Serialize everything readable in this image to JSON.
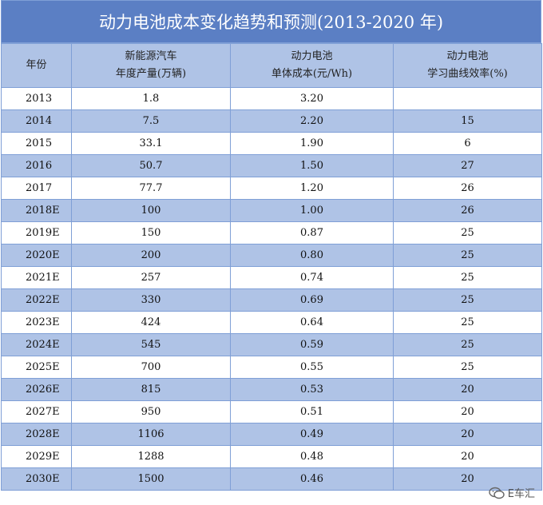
{
  "title": "动力电池成本变化趋势和预测(2013-2020 年)",
  "headers": {
    "year": "年份",
    "sales_line1": "新能源汽车",
    "sales_line2": "年度产量(万辆)",
    "cost_line1": "动力电池",
    "cost_line2": "单体成本(元/Wh)",
    "rate_line1": "动力电池",
    "rate_line2": "学习曲线效率(%)"
  },
  "rows": [
    {
      "year": "2013",
      "sales": "1.8",
      "cost": "3.20",
      "rate": ""
    },
    {
      "year": "2014",
      "sales": "7.5",
      "cost": "2.20",
      "rate": "15"
    },
    {
      "year": "2015",
      "sales": "33.1",
      "cost": "1.90",
      "rate": "6"
    },
    {
      "year": "2016",
      "sales": "50.7",
      "cost": "1.50",
      "rate": "27"
    },
    {
      "year": "2017",
      "sales": "77.7",
      "cost": "1.20",
      "rate": "26"
    },
    {
      "year": "2018E",
      "sales": "100",
      "cost": "1.00",
      "rate": "26"
    },
    {
      "year": "2019E",
      "sales": "150",
      "cost": "0.87",
      "rate": "25"
    },
    {
      "year": "2020E",
      "sales": "200",
      "cost": "0.80",
      "rate": "25"
    },
    {
      "year": "2021E",
      "sales": "257",
      "cost": "0.74",
      "rate": "25"
    },
    {
      "year": "2022E",
      "sales": "330",
      "cost": "0.69",
      "rate": "25"
    },
    {
      "year": "2023E",
      "sales": "424",
      "cost": "0.64",
      "rate": "25"
    },
    {
      "year": "2024E",
      "sales": "545",
      "cost": "0.59",
      "rate": "25"
    },
    {
      "year": "2025E",
      "sales": "700",
      "cost": "0.55",
      "rate": "25"
    },
    {
      "year": "2026E",
      "sales": "815",
      "cost": "0.53",
      "rate": "20"
    },
    {
      "year": "2027E",
      "sales": "950",
      "cost": "0.51",
      "rate": "20"
    },
    {
      "year": "2028E",
      "sales": "1106",
      "cost": "0.49",
      "rate": "20"
    },
    {
      "year": "2029E",
      "sales": "1288",
      "cost": "0.48",
      "rate": "20"
    },
    {
      "year": "2030E",
      "sales": "1500",
      "cost": "0.46",
      "rate": "20"
    }
  ],
  "watermark": {
    "text": "E车汇",
    "icon": "wechat-icon"
  },
  "colors": {
    "title_bg": "#5b7fc4",
    "band": "#afc3e6",
    "border": "#7f9fd6"
  }
}
